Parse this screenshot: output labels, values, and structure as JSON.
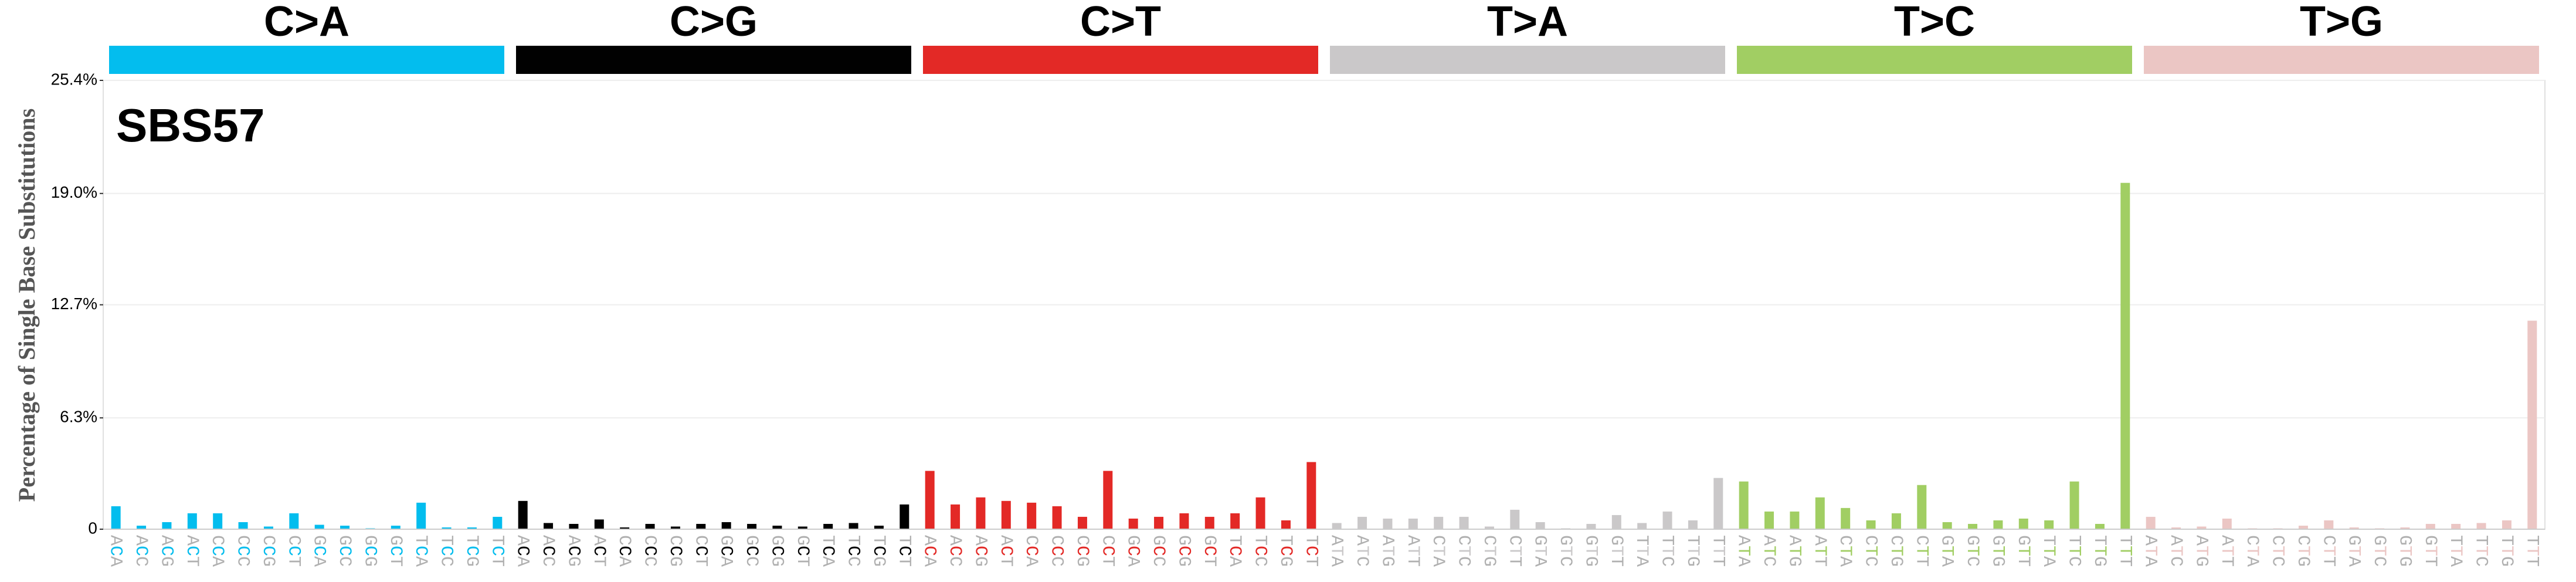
{
  "chart_data": {
    "type": "bar",
    "title": "SBS57",
    "y_label": "Percentage of Single Base Substitutions",
    "ylim": [
      0,
      25.4
    ],
    "yticks": [
      0,
      {
        "value": 6.3,
        "label": "6.3%"
      },
      {
        "value": 12.7,
        "label": "12.7%"
      },
      {
        "value": 19.0,
        "label": "19.0%"
      },
      {
        "value": 25.4,
        "label": "25.4%"
      }
    ],
    "grid": true,
    "series": [
      {
        "name": "C>A",
        "color": "#03bdee",
        "categories": [
          "ACA",
          "ACC",
          "ACG",
          "ACT",
          "CCA",
          "CCC",
          "CCG",
          "CCT",
          "GCA",
          "GCC",
          "GCG",
          "GCT",
          "TCA",
          "TCC",
          "TCG",
          "TCT"
        ],
        "values": [
          1.3,
          0.2,
          0.4,
          0.9,
          0.9,
          0.4,
          0.15,
          0.9,
          0.25,
          0.2,
          0.05,
          0.2,
          1.5,
          0.1,
          0.1,
          0.7
        ]
      },
      {
        "name": "C>G",
        "color": "#010101",
        "categories": [
          "ACA",
          "ACC",
          "ACG",
          "ACT",
          "CCA",
          "CCC",
          "CCG",
          "CCT",
          "GCA",
          "GCC",
          "GCG",
          "GCT",
          "TCA",
          "TCC",
          "TCG",
          "TCT"
        ],
        "values": [
          1.6,
          0.35,
          0.3,
          0.55,
          0.1,
          0.3,
          0.15,
          0.3,
          0.4,
          0.3,
          0.2,
          0.15,
          0.3,
          0.35,
          0.2,
          1.4
        ]
      },
      {
        "name": "C>T",
        "color": "#e32926",
        "categories": [
          "ACA",
          "ACC",
          "ACG",
          "ACT",
          "CCA",
          "CCC",
          "CCG",
          "CCT",
          "GCA",
          "GCC",
          "GCG",
          "GCT",
          "TCA",
          "TCC",
          "TCG",
          "TCT"
        ],
        "values": [
          3.3,
          1.4,
          1.8,
          1.6,
          1.5,
          1.3,
          0.7,
          3.3,
          0.6,
          0.7,
          0.9,
          0.7,
          0.9,
          1.8,
          0.5,
          3.8
        ]
      },
      {
        "name": "T>A",
        "color": "#cac8c9",
        "categories": [
          "ATA",
          "ATC",
          "ATG",
          "ATT",
          "CTA",
          "CTC",
          "CTG",
          "CTT",
          "GTA",
          "GTC",
          "GTG",
          "GTT",
          "TTA",
          "TTC",
          "TTG",
          "TTT"
        ],
        "values": [
          0.35,
          0.7,
          0.6,
          0.6,
          0.7,
          0.7,
          0.15,
          1.1,
          0.4,
          0.05,
          0.3,
          0.8,
          0.35,
          1.0,
          0.5,
          2.9
        ]
      },
      {
        "name": "T>C",
        "color": "#a1ce63",
        "categories": [
          "ATA",
          "ATC",
          "ATG",
          "ATT",
          "CTA",
          "CTC",
          "CTG",
          "CTT",
          "GTA",
          "GTC",
          "GTG",
          "GTT",
          "TTA",
          "TTC",
          "TTG",
          "TTT"
        ],
        "values": [
          2.7,
          1.0,
          1.0,
          1.8,
          1.2,
          0.5,
          0.9,
          2.5,
          0.4,
          0.3,
          0.5,
          0.6,
          0.5,
          2.7,
          0.3,
          19.6
        ]
      },
      {
        "name": "T>G",
        "color": "#ebc6c4",
        "categories": [
          "ATA",
          "ATC",
          "ATG",
          "ATT",
          "CTA",
          "CTC",
          "CTG",
          "CTT",
          "GTA",
          "GTC",
          "GTG",
          "GTT",
          "TTA",
          "TTC",
          "TTG",
          "TTT"
        ],
        "values": [
          0.7,
          0.1,
          0.15,
          0.6,
          0.05,
          0.05,
          0.2,
          0.5,
          0.1,
          0.05,
          0.1,
          0.3,
          0.3,
          0.35,
          0.5,
          11.8
        ]
      }
    ]
  }
}
